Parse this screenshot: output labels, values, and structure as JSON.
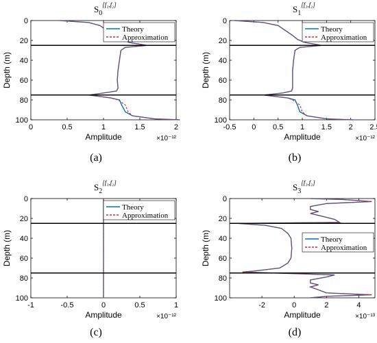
{
  "chart_data": [
    {
      "type": "line",
      "title_base": "S",
      "title_sub": "0",
      "title_sup": "[f₁,f₂]",
      "caption": "(a)",
      "xlabel": "Amplitude",
      "ylabel": "Depth (m)",
      "x_exponent": "×10⁻¹²",
      "xlim": [
        0,
        2
      ],
      "ylim": [
        0,
        100
      ],
      "xticks": [
        0,
        0.5,
        1,
        1.5,
        2
      ],
      "xtick_labels": [
        "0",
        "0.5",
        "1",
        "1.5",
        "2"
      ],
      "yticks": [
        0,
        20,
        40,
        60,
        80,
        100
      ],
      "ytick_labels": [
        "0",
        "20",
        "40",
        "60",
        "80",
        "100"
      ],
      "hlines": [
        25,
        75
      ],
      "legend_position": "top-right",
      "series": [
        {
          "name": "Theory",
          "color": "#0072BD",
          "style": "solid",
          "x": [
            0.4,
            0.8,
            0.95,
            1.05,
            1.2,
            1.28,
            1.35,
            1.6,
            1.3,
            1.24,
            1.22,
            1.2,
            1.19,
            1.2,
            1.18,
            1.0,
            0.8,
            1.1,
            1.22,
            1.25,
            1.3,
            1.4,
            1.7,
            2.05
          ],
          "y": [
            0,
            2,
            5,
            10,
            15,
            19,
            22,
            25,
            27,
            30,
            40,
            50,
            60,
            68,
            71,
            73,
            75,
            78,
            80,
            85,
            92,
            96,
            99,
            100
          ]
        },
        {
          "name": "Approximation",
          "color": "#D62728",
          "style": "dashed",
          "x": [
            0.4,
            0.8,
            0.95,
            1.05,
            1.2,
            1.28,
            1.35,
            1.6,
            1.3,
            1.24,
            1.22,
            1.2,
            1.19,
            1.2,
            1.18,
            1.0,
            0.8,
            1.1,
            1.2,
            1.3,
            1.34,
            1.4,
            1.7,
            2.05
          ],
          "y": [
            0,
            2,
            5,
            10,
            15,
            19,
            22,
            25,
            27,
            30,
            40,
            50,
            60,
            68,
            71,
            73,
            75,
            78,
            80,
            85,
            92,
            96,
            99,
            100
          ]
        }
      ]
    },
    {
      "type": "line",
      "title_base": "S",
      "title_sub": "1",
      "title_sup": "[f₁,f₂]",
      "caption": "(b)",
      "xlabel": "Amplitude",
      "ylabel": "Depth (m)",
      "x_exponent": "×10⁻¹²",
      "xlim": [
        -0.5,
        2.5
      ],
      "ylim": [
        0,
        100
      ],
      "xticks": [
        -0.5,
        0,
        0.5,
        1,
        1.5,
        2,
        2.5
      ],
      "xtick_labels": [
        "-0.5",
        "0",
        "0.5",
        "1",
        "1.5",
        "2",
        "2.5"
      ],
      "yticks": [
        0,
        20,
        40,
        60,
        80,
        100
      ],
      "ytick_labels": [
        "0",
        "20",
        "40",
        "60",
        "80",
        "100"
      ],
      "hlines": [
        25,
        75
      ],
      "legend_position": "top-right",
      "series": [
        {
          "name": "Theory",
          "color": "#0072BD",
          "style": "solid",
          "x": [
            -0.4,
            0.2,
            0.5,
            0.65,
            0.8,
            0.9,
            1.05,
            1.4,
            0.95,
            0.85,
            0.82,
            0.8,
            0.8,
            0.8,
            0.78,
            0.6,
            0.2,
            0.7,
            0.85,
            0.9,
            0.95,
            1.1,
            1.5,
            2.05
          ],
          "y": [
            0,
            2,
            5,
            10,
            15,
            19,
            22,
            25,
            27,
            30,
            40,
            50,
            60,
            68,
            71,
            73,
            75,
            78,
            80,
            85,
            92,
            96,
            99,
            100
          ]
        },
        {
          "name": "Approximation",
          "color": "#D62728",
          "style": "dashed",
          "x": [
            -0.4,
            0.2,
            0.5,
            0.65,
            0.8,
            0.9,
            1.05,
            1.4,
            0.95,
            0.85,
            0.82,
            0.8,
            0.8,
            0.8,
            0.78,
            0.6,
            0.2,
            0.7,
            0.8,
            0.95,
            1.0,
            1.1,
            1.5,
            2.05
          ],
          "y": [
            0,
            2,
            5,
            10,
            15,
            19,
            22,
            25,
            27,
            30,
            40,
            50,
            60,
            68,
            71,
            73,
            75,
            78,
            80,
            85,
            92,
            96,
            99,
            100
          ]
        }
      ]
    },
    {
      "type": "line",
      "title_base": "S",
      "title_sub": "2",
      "title_sup": "[f₁,f₂]",
      "caption": "(c)",
      "xlabel": "Amplitude",
      "ylabel": "Depth (m)",
      "x_exponent": "×10⁻¹²",
      "xlim": [
        -1,
        1
      ],
      "ylim": [
        0,
        100
      ],
      "xticks": [
        -1,
        -0.5,
        0,
        0.5,
        1
      ],
      "xtick_labels": [
        "-1",
        "-0.5",
        "0",
        "0.5",
        "1"
      ],
      "yticks": [
        0,
        20,
        40,
        60,
        80,
        100
      ],
      "ytick_labels": [
        "0",
        "20",
        "40",
        "60",
        "80",
        "100"
      ],
      "hlines": [
        25,
        75
      ],
      "legend_position": "top-right",
      "series": [
        {
          "name": "Theory",
          "color": "#0072BD",
          "style": "solid",
          "x": [
            0,
            0,
            0,
            0,
            0,
            0
          ],
          "y": [
            0,
            20,
            40,
            60,
            80,
            100
          ]
        },
        {
          "name": "Approximation",
          "color": "#D62728",
          "style": "dashed",
          "x": [
            0,
            0,
            0,
            0,
            0,
            0
          ],
          "y": [
            0,
            20,
            40,
            60,
            80,
            100
          ]
        }
      ]
    },
    {
      "type": "line",
      "title_base": "S",
      "title_sub": "3",
      "title_sup": "[f₁,f₂]",
      "caption": "(d)",
      "xlabel": "Amplitude",
      "ylabel": "Depth (m)",
      "x_exponent": "×10⁻¹³",
      "xlim": [
        -4,
        5
      ],
      "ylim": [
        0,
        100
      ],
      "xticks": [
        -2,
        0,
        2,
        4
      ],
      "xtick_labels": [
        "-2",
        "0",
        "2",
        "4"
      ],
      "yticks": [
        0,
        20,
        40,
        60,
        80,
        100
      ],
      "ytick_labels": [
        "0",
        "20",
        "40",
        "60",
        "80",
        "100"
      ],
      "hlines": [
        25,
        75
      ],
      "legend_position": "top-right",
      "series": [
        {
          "name": "Theory",
          "color": "#0072BD",
          "style": "solid",
          "x": [
            1,
            3,
            4.8,
            2,
            1,
            1,
            1.5,
            1,
            1.5,
            2.5,
            2.8,
            -3.5,
            -1.8,
            -0.8,
            -0.4,
            -0.2,
            -0.15,
            -0.2,
            -0.4,
            -0.9,
            -2.5,
            -3.2,
            2.5,
            2,
            1,
            1,
            1.5,
            1,
            1.5,
            2,
            4.8,
            2,
            1
          ],
          "y": [
            0,
            1,
            3,
            5,
            8,
            11,
            13,
            15,
            17,
            21,
            24,
            25,
            27,
            30,
            35,
            40,
            50,
            60,
            65,
            70,
            73,
            74,
            77,
            79,
            82,
            85,
            87,
            89,
            92,
            95,
            97,
            98.5,
            100
          ]
        },
        {
          "name": "Approximation",
          "color": "#D62728",
          "style": "dashed",
          "x": [
            1,
            3,
            4.8,
            2,
            1,
            1,
            1.5,
            1,
            1.5,
            2.5,
            2.8,
            -3.5,
            -1.8,
            -0.8,
            -0.4,
            -0.2,
            -0.15,
            -0.2,
            -0.4,
            -0.9,
            -2.5,
            -3.2,
            2.5,
            2,
            1,
            1,
            1.5,
            1,
            1.5,
            2,
            4.8,
            2,
            1
          ],
          "y": [
            0,
            1,
            3,
            5,
            8,
            11,
            13,
            15,
            17,
            21,
            24,
            25,
            27,
            30,
            35,
            40,
            50,
            60,
            65,
            70,
            73,
            74,
            77,
            79,
            82,
            85,
            87,
            89,
            92,
            95,
            97,
            98.5,
            100
          ]
        }
      ]
    }
  ]
}
